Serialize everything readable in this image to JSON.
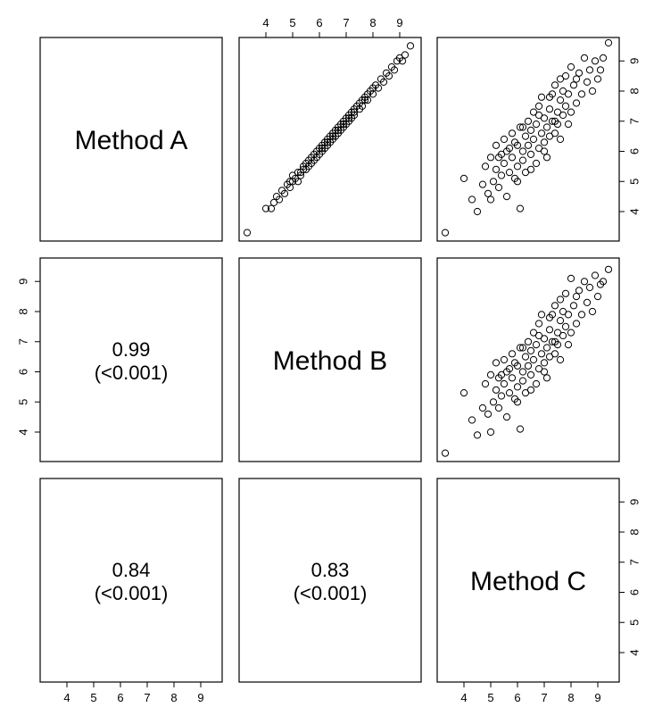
{
  "chart_data": {
    "type": "scatter",
    "variables": [
      "Method A",
      "Method B",
      "Method C"
    ],
    "tick_values": [
      4,
      5,
      6,
      7,
      8,
      9
    ],
    "axis_range": [
      3.2,
      9.6
    ],
    "lower_panels": [
      {
        "row": 1,
        "col": 0,
        "coef": "0.99",
        "p": "(<0.001)"
      },
      {
        "row": 2,
        "col": 0,
        "coef": "0.84",
        "p": "(<0.001)"
      },
      {
        "row": 2,
        "col": 1,
        "coef": "0.83",
        "p": "(<0.001)"
      }
    ],
    "scatter_panels": [
      {
        "row": 0,
        "col": 1,
        "x_var": "Method B",
        "y_var": "Method A",
        "points": [
          [
            3.3,
            3.3
          ],
          [
            4.0,
            4.1
          ],
          [
            4.2,
            4.1
          ],
          [
            4.3,
            4.3
          ],
          [
            4.4,
            4.5
          ],
          [
            4.5,
            4.4
          ],
          [
            4.6,
            4.7
          ],
          [
            4.7,
            4.6
          ],
          [
            4.8,
            4.9
          ],
          [
            4.9,
            4.8
          ],
          [
            5.0,
            5.0
          ],
          [
            5.0,
            5.2
          ],
          [
            5.1,
            5.1
          ],
          [
            5.2,
            5.0
          ],
          [
            5.2,
            5.3
          ],
          [
            5.3,
            5.2
          ],
          [
            5.4,
            5.4
          ],
          [
            5.4,
            5.5
          ],
          [
            5.5,
            5.6
          ],
          [
            5.5,
            5.4
          ],
          [
            5.6,
            5.7
          ],
          [
            5.6,
            5.5
          ],
          [
            5.7,
            5.8
          ],
          [
            5.8,
            5.7
          ],
          [
            5.8,
            5.9
          ],
          [
            5.9,
            6.0
          ],
          [
            5.9,
            5.8
          ],
          [
            6.0,
            6.1
          ],
          [
            6.0,
            5.9
          ],
          [
            6.1,
            6.0
          ],
          [
            6.1,
            6.2
          ],
          [
            6.2,
            6.3
          ],
          [
            6.2,
            6.1
          ],
          [
            6.3,
            6.4
          ],
          [
            6.3,
            6.2
          ],
          [
            6.4,
            6.5
          ],
          [
            6.4,
            6.3
          ],
          [
            6.5,
            6.6
          ],
          [
            6.5,
            6.4
          ],
          [
            6.6,
            6.7
          ],
          [
            6.6,
            6.5
          ],
          [
            6.7,
            6.8
          ],
          [
            6.7,
            6.6
          ],
          [
            6.8,
            6.9
          ],
          [
            6.8,
            6.7
          ],
          [
            6.9,
            7.0
          ],
          [
            6.9,
            6.8
          ],
          [
            7.0,
            7.1
          ],
          [
            7.0,
            6.9
          ],
          [
            7.1,
            7.2
          ],
          [
            7.1,
            7.0
          ],
          [
            7.2,
            7.3
          ],
          [
            7.2,
            7.1
          ],
          [
            7.3,
            7.4
          ],
          [
            7.3,
            7.2
          ],
          [
            7.4,
            7.5
          ],
          [
            7.5,
            7.4
          ],
          [
            7.5,
            7.6
          ],
          [
            7.6,
            7.7
          ],
          [
            7.6,
            7.5
          ],
          [
            7.7,
            7.8
          ],
          [
            7.8,
            7.7
          ],
          [
            7.8,
            7.9
          ],
          [
            7.9,
            8.0
          ],
          [
            8.0,
            8.1
          ],
          [
            8.0,
            7.9
          ],
          [
            8.1,
            8.2
          ],
          [
            8.2,
            8.1
          ],
          [
            8.3,
            8.4
          ],
          [
            8.4,
            8.3
          ],
          [
            8.5,
            8.6
          ],
          [
            8.6,
            8.5
          ],
          [
            8.7,
            8.8
          ],
          [
            8.8,
            8.7
          ],
          [
            8.9,
            9.0
          ],
          [
            9.0,
            9.1
          ],
          [
            9.1,
            9.0
          ],
          [
            9.2,
            9.2
          ],
          [
            9.4,
            9.5
          ],
          [
            5.7,
            5.6
          ],
          [
            6.1,
            6.1
          ],
          [
            6.5,
            6.5
          ],
          [
            6.9,
            6.9
          ],
          [
            7.3,
            7.3
          ],
          [
            5.3,
            5.3
          ],
          [
            6.3,
            6.3
          ],
          [
            7.7,
            7.7
          ],
          [
            4.9,
            5.0
          ],
          [
            6.7,
            6.7
          ],
          [
            7.1,
            7.1
          ]
        ]
      },
      {
        "row": 0,
        "col": 2,
        "x_var": "Method C",
        "y_var": "Method A",
        "points": [
          [
            3.3,
            3.3
          ],
          [
            4.0,
            5.1
          ],
          [
            4.3,
            4.4
          ],
          [
            4.5,
            4.0
          ],
          [
            4.7,
            4.9
          ],
          [
            4.8,
            5.5
          ],
          [
            4.9,
            4.6
          ],
          [
            5.0,
            5.8
          ],
          [
            5.0,
            4.4
          ],
          [
            5.1,
            5.0
          ],
          [
            5.2,
            6.2
          ],
          [
            5.2,
            5.4
          ],
          [
            5.3,
            4.8
          ],
          [
            5.4,
            5.9
          ],
          [
            5.4,
            5.2
          ],
          [
            5.5,
            6.4
          ],
          [
            5.5,
            5.6
          ],
          [
            5.6,
            4.5
          ],
          [
            5.6,
            6.0
          ],
          [
            5.7,
            5.3
          ],
          [
            5.8,
            6.6
          ],
          [
            5.8,
            5.8
          ],
          [
            5.9,
            5.1
          ],
          [
            6.0,
            6.2
          ],
          [
            6.0,
            5.5
          ],
          [
            6.1,
            4.1
          ],
          [
            6.1,
            6.8
          ],
          [
            6.2,
            6.0
          ],
          [
            6.2,
            5.7
          ],
          [
            6.3,
            6.5
          ],
          [
            6.3,
            5.3
          ],
          [
            6.4,
            7.0
          ],
          [
            6.4,
            6.2
          ],
          [
            6.5,
            5.9
          ],
          [
            6.5,
            6.7
          ],
          [
            6.6,
            7.3
          ],
          [
            6.6,
            6.4
          ],
          [
            6.7,
            5.6
          ],
          [
            6.7,
            6.9
          ],
          [
            6.8,
            6.1
          ],
          [
            6.8,
            7.5
          ],
          [
            6.9,
            6.6
          ],
          [
            6.9,
            7.8
          ],
          [
            7.0,
            6.3
          ],
          [
            7.0,
            7.1
          ],
          [
            7.1,
            6.8
          ],
          [
            7.1,
            5.8
          ],
          [
            7.2,
            7.4
          ],
          [
            7.2,
            6.5
          ],
          [
            7.3,
            7.9
          ],
          [
            7.3,
            7.0
          ],
          [
            7.4,
            6.6
          ],
          [
            7.4,
            8.2
          ],
          [
            7.5,
            7.3
          ],
          [
            7.5,
            6.9
          ],
          [
            7.6,
            7.7
          ],
          [
            7.6,
            6.4
          ],
          [
            7.7,
            8.0
          ],
          [
            7.7,
            7.2
          ],
          [
            7.8,
            8.5
          ],
          [
            7.8,
            7.5
          ],
          [
            7.9,
            6.9
          ],
          [
            7.9,
            7.9
          ],
          [
            8.0,
            8.8
          ],
          [
            8.0,
            7.3
          ],
          [
            8.1,
            8.2
          ],
          [
            8.2,
            7.6
          ],
          [
            8.3,
            8.6
          ],
          [
            8.4,
            7.9
          ],
          [
            8.5,
            9.1
          ],
          [
            8.6,
            8.3
          ],
          [
            8.7,
            8.7
          ],
          [
            8.8,
            8.0
          ],
          [
            8.9,
            9.0
          ],
          [
            9.0,
            8.4
          ],
          [
            9.1,
            8.7
          ],
          [
            9.2,
            9.1
          ],
          [
            9.4,
            9.6
          ],
          [
            5.9,
            6.3
          ],
          [
            6.5,
            5.4
          ],
          [
            7.0,
            6.0
          ],
          [
            6.2,
            6.8
          ],
          [
            7.4,
            7.0
          ],
          [
            5.7,
            6.1
          ],
          [
            6.8,
            7.2
          ],
          [
            7.6,
            8.4
          ],
          [
            5.3,
            5.8
          ],
          [
            8.2,
            8.4
          ],
          [
            6.0,
            5.0
          ],
          [
            7.2,
            7.8
          ]
        ]
      },
      {
        "row": 1,
        "col": 2,
        "x_var": "Method C",
        "y_var": "Method B",
        "points": [
          [
            3.3,
            3.3
          ],
          [
            4.0,
            5.3
          ],
          [
            4.3,
            4.4
          ],
          [
            4.5,
            3.9
          ],
          [
            4.7,
            4.8
          ],
          [
            4.8,
            5.6
          ],
          [
            4.9,
            4.6
          ],
          [
            5.0,
            5.9
          ],
          [
            5.0,
            4.0
          ],
          [
            5.1,
            5.0
          ],
          [
            5.2,
            6.3
          ],
          [
            5.2,
            5.4
          ],
          [
            5.3,
            4.8
          ],
          [
            5.4,
            5.9
          ],
          [
            5.4,
            5.2
          ],
          [
            5.5,
            6.4
          ],
          [
            5.5,
            5.6
          ],
          [
            5.6,
            4.5
          ],
          [
            5.6,
            6.0
          ],
          [
            5.7,
            5.3
          ],
          [
            5.8,
            6.6
          ],
          [
            5.8,
            5.8
          ],
          [
            5.9,
            5.1
          ],
          [
            6.0,
            6.2
          ],
          [
            6.0,
            5.5
          ],
          [
            6.1,
            4.1
          ],
          [
            6.1,
            6.8
          ],
          [
            6.2,
            6.0
          ],
          [
            6.2,
            5.7
          ],
          [
            6.3,
            6.5
          ],
          [
            6.3,
            5.3
          ],
          [
            6.4,
            7.0
          ],
          [
            6.4,
            6.2
          ],
          [
            6.5,
            5.9
          ],
          [
            6.5,
            6.7
          ],
          [
            6.6,
            7.3
          ],
          [
            6.6,
            6.4
          ],
          [
            6.7,
            5.6
          ],
          [
            6.7,
            6.9
          ],
          [
            6.8,
            6.1
          ],
          [
            6.8,
            7.6
          ],
          [
            6.9,
            6.6
          ],
          [
            6.9,
            7.9
          ],
          [
            7.0,
            6.3
          ],
          [
            7.0,
            7.1
          ],
          [
            7.1,
            6.8
          ],
          [
            7.1,
            5.8
          ],
          [
            7.2,
            7.4
          ],
          [
            7.2,
            6.5
          ],
          [
            7.3,
            7.9
          ],
          [
            7.3,
            7.0
          ],
          [
            7.4,
            6.6
          ],
          [
            7.4,
            8.2
          ],
          [
            7.5,
            7.3
          ],
          [
            7.5,
            6.9
          ],
          [
            7.6,
            7.7
          ],
          [
            7.6,
            6.4
          ],
          [
            7.7,
            8.0
          ],
          [
            7.7,
            7.2
          ],
          [
            7.8,
            8.6
          ],
          [
            7.8,
            7.5
          ],
          [
            7.9,
            6.9
          ],
          [
            7.9,
            7.9
          ],
          [
            8.0,
            9.1
          ],
          [
            8.0,
            7.3
          ],
          [
            8.1,
            8.2
          ],
          [
            8.2,
            7.6
          ],
          [
            8.3,
            8.7
          ],
          [
            8.4,
            7.9
          ],
          [
            8.5,
            9.0
          ],
          [
            8.6,
            8.3
          ],
          [
            8.7,
            8.8
          ],
          [
            8.8,
            8.0
          ],
          [
            8.9,
            9.2
          ],
          [
            9.0,
            8.5
          ],
          [
            9.1,
            8.9
          ],
          [
            9.2,
            9.0
          ],
          [
            9.4,
            9.4
          ],
          [
            5.9,
            6.3
          ],
          [
            6.5,
            5.4
          ],
          [
            7.0,
            6.0
          ],
          [
            6.2,
            6.8
          ],
          [
            7.4,
            7.0
          ],
          [
            5.7,
            6.1
          ],
          [
            6.8,
            7.2
          ],
          [
            7.6,
            8.4
          ],
          [
            5.3,
            5.8
          ],
          [
            8.2,
            8.5
          ],
          [
            6.0,
            5.0
          ],
          [
            7.2,
            7.8
          ]
        ]
      }
    ]
  }
}
